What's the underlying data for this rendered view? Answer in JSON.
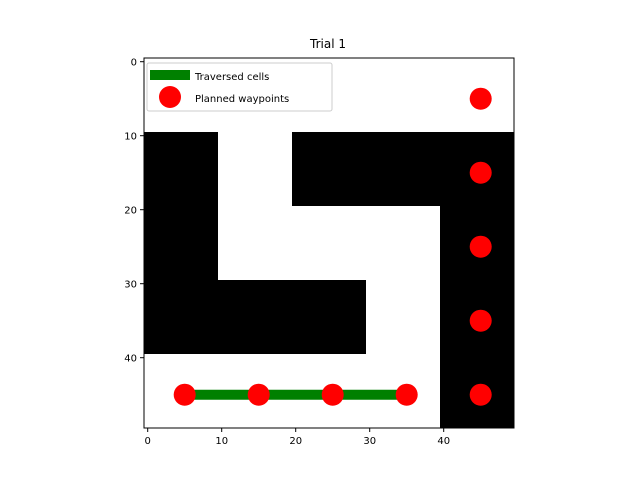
{
  "chart_data": {
    "type": "heatmap",
    "title": "Trial 1",
    "xlabel": "",
    "ylabel": "",
    "grid": false,
    "legend_position": "top-left",
    "xlim": [
      -0.5,
      49.5
    ],
    "ylim": [
      49.5,
      -0.5
    ],
    "y_axis_inverted": true,
    "xticks": [
      0,
      10,
      20,
      30,
      40
    ],
    "yticks": [
      0,
      10,
      20,
      30,
      40
    ],
    "obstacles": [
      {
        "x0": 0,
        "x1": 10,
        "y0": 10,
        "y1": 40
      },
      {
        "x0": 10,
        "x1": 30,
        "y0": 30,
        "y1": 40
      },
      {
        "x0": 20,
        "x1": 40,
        "y0": 10,
        "y1": 20
      },
      {
        "x0": 40,
        "x1": 50,
        "y0": 10,
        "y1": 50
      }
    ],
    "series": [
      {
        "name": "Traversed cells",
        "kind": "line",
        "color": "#008000",
        "x": [
          5,
          15,
          25,
          35
        ],
        "y": [
          45,
          45,
          45,
          45
        ]
      },
      {
        "name": "Planned waypoints",
        "kind": "scatter",
        "color": "#ff0000",
        "x": [
          45,
          45,
          45,
          45,
          45,
          5,
          15,
          25,
          35
        ],
        "y": [
          5,
          15,
          25,
          35,
          45,
          45,
          45,
          45,
          45
        ]
      }
    ],
    "colors": {
      "obstacle": "#000000",
      "free": "#ffffff"
    }
  }
}
